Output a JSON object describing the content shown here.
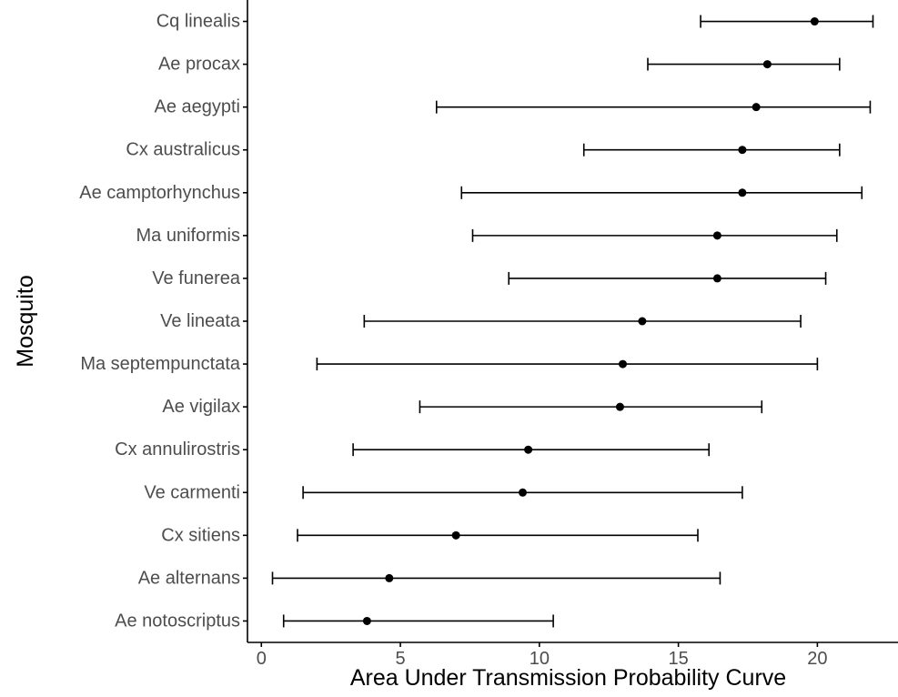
{
  "chart_data": {
    "type": "scatter",
    "subtype": "point-range",
    "title": "",
    "xlabel": "Area Under Transmission Probability Curve",
    "ylabel": "Mosquito",
    "xlim": [
      -0.5,
      22.9
    ],
    "xticks": [
      0,
      5,
      10,
      15,
      20
    ],
    "grid": false,
    "legend": "none",
    "colors": {
      "point": "#000000",
      "errorbar": "#000000",
      "axis": "#000000",
      "tick_label": "#4d4d4d"
    },
    "categories": [
      "Cq linealis",
      "Ae procax",
      "Ae aegypti",
      "Cx australicus",
      "Ae camptorhynchus",
      "Ma uniformis",
      "Ve funerea",
      "Ve lineata",
      "Ma septempunctata",
      "Ae vigilax",
      "Cx annulirostris",
      "Ve carmenti",
      "Cx sitiens",
      "Ae alternans",
      "Ae notoscriptus"
    ],
    "values": [
      19.9,
      18.2,
      17.8,
      17.3,
      17.3,
      16.4,
      16.4,
      13.7,
      13.0,
      12.9,
      9.6,
      9.4,
      7.0,
      4.6,
      3.8
    ],
    "lower": [
      15.8,
      13.9,
      6.3,
      11.6,
      7.2,
      7.6,
      8.9,
      3.7,
      2.0,
      5.7,
      3.3,
      1.5,
      1.3,
      0.4,
      0.8
    ],
    "upper": [
      22.0,
      20.8,
      21.9,
      20.8,
      21.6,
      20.7,
      20.3,
      19.4,
      20.0,
      18.0,
      16.1,
      17.3,
      15.7,
      16.5,
      10.5
    ]
  }
}
